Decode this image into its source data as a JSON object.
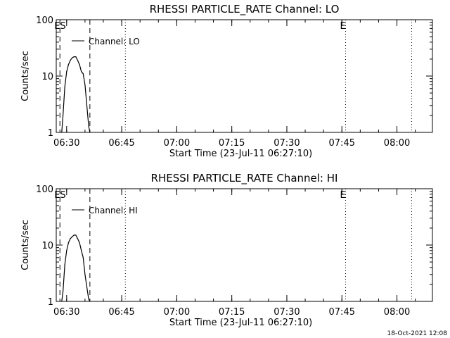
{
  "chart_data": [
    {
      "type": "line",
      "title": "RHESSI PARTICLE_RATE Channel: LO",
      "xlabel": "Start Time (23-Jul-11 06:27:10)",
      "ylabel": "Counts/sec",
      "yscale": "log",
      "ylim": [
        1,
        100
      ],
      "xlim": [
        "06:27:10",
        "08:09:40"
      ],
      "x_ticks": [
        "06:30",
        "06:45",
        "07:00",
        "07:15",
        "07:30",
        "07:45",
        "08:00"
      ],
      "y_ticks": [
        "1",
        "10",
        "100"
      ],
      "legend": {
        "label": "Channel: LO",
        "position": "top-left"
      },
      "markers": [
        {
          "label": "ES",
          "time": "06:28:10",
          "style": "dashed"
        },
        {
          "label": "",
          "time": "06:36:20",
          "style": "dashed"
        },
        {
          "label": "",
          "time": "06:46:00",
          "style": "dotted"
        },
        {
          "label": "E",
          "time": "07:46:00",
          "style": "dotted"
        },
        {
          "label": "",
          "time": "08:04:00",
          "style": "dotted"
        }
      ],
      "series": [
        {
          "name": "Channel: LO",
          "x": [
            "06:28:40",
            "06:29:00",
            "06:29:30",
            "06:30:00",
            "06:30:30",
            "06:31:00",
            "06:31:30",
            "06:32:00",
            "06:32:30",
            "06:33:00",
            "06:33:30",
            "06:34:00",
            "06:34:30",
            "06:35:00",
            "06:35:30",
            "06:36:00",
            "06:36:20"
          ],
          "values": [
            1,
            2.0,
            6.5,
            12,
            16,
            19,
            21,
            22,
            22,
            19,
            16,
            12,
            11,
            7,
            3,
            1.3,
            1
          ]
        }
      ]
    },
    {
      "type": "line",
      "title": "RHESSI PARTICLE_RATE Channel: HI",
      "xlabel": "Start Time (23-Jul-11 06:27:10)",
      "ylabel": "Counts/sec",
      "yscale": "log",
      "ylim": [
        1,
        100
      ],
      "xlim": [
        "06:27:10",
        "08:09:40"
      ],
      "x_ticks": [
        "06:30",
        "06:45",
        "07:00",
        "07:15",
        "07:30",
        "07:45",
        "08:00"
      ],
      "y_ticks": [
        "1",
        "10",
        "100"
      ],
      "legend": {
        "label": "Channel: HI",
        "position": "top-left"
      },
      "markers": [
        {
          "label": "ES",
          "time": "06:28:10",
          "style": "dashed"
        },
        {
          "label": "",
          "time": "06:36:20",
          "style": "dashed"
        },
        {
          "label": "",
          "time": "06:46:00",
          "style": "dotted"
        },
        {
          "label": "E",
          "time": "07:46:00",
          "style": "dotted"
        },
        {
          "label": "",
          "time": "08:04:00",
          "style": "dotted"
        }
      ],
      "series": [
        {
          "name": "Channel: HI",
          "x": [
            "06:28:40",
            "06:29:00",
            "06:29:30",
            "06:30:00",
            "06:30:30",
            "06:31:00",
            "06:31:30",
            "06:32:00",
            "06:32:30",
            "06:33:00",
            "06:33:30",
            "06:34:00",
            "06:34:30",
            "06:35:00",
            "06:35:30",
            "06:36:00",
            "06:36:20"
          ],
          "values": [
            1,
            1.5,
            4.5,
            8,
            11,
            13,
            14,
            15,
            15,
            13,
            11,
            8,
            6,
            3,
            1.8,
            1.1,
            1
          ]
        }
      ]
    }
  ],
  "footer": {
    "timestamp": "18-Oct-2021 12:08"
  }
}
